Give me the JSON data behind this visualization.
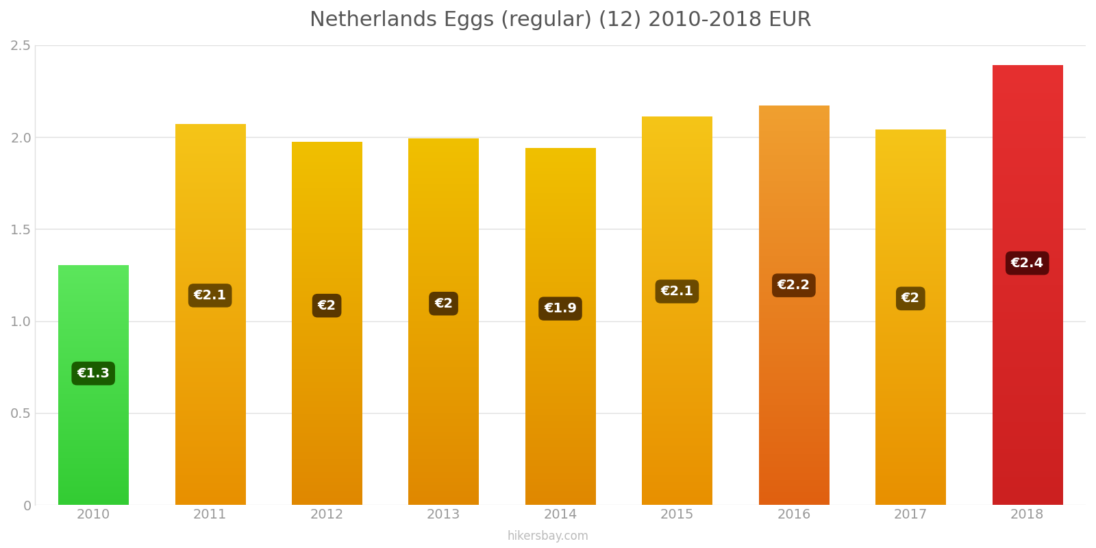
{
  "title": "Netherlands Eggs (regular) (12) 2010-2018 EUR",
  "years": [
    2010,
    2011,
    2012,
    2013,
    2014,
    2015,
    2016,
    2017,
    2018
  ],
  "values": [
    1.3,
    2.07,
    1.97,
    1.99,
    1.94,
    2.11,
    2.17,
    2.04,
    2.39
  ],
  "labels": [
    "€1.3",
    "€2.1",
    "€2",
    "€2",
    "€1.9",
    "€2.1",
    "€2.2",
    "€2",
    "€2.4"
  ],
  "bar_top_colors": [
    "#5ce65c",
    "#f5c518",
    "#f0c000",
    "#f0c000",
    "#f0c000",
    "#f5c518",
    "#f0a030",
    "#f5c518",
    "#e63030"
  ],
  "bar_bottom_colors": [
    "#33cc33",
    "#e89000",
    "#e08800",
    "#e08800",
    "#e08800",
    "#e89000",
    "#e06010",
    "#e89000",
    "#cc2020"
  ],
  "label_box_colors": [
    "#1a5c00",
    "#6b4a00",
    "#5a3800",
    "#5a3800",
    "#5a3800",
    "#6b4a00",
    "#6b3000",
    "#6b4a00",
    "#5a0808"
  ],
  "ylim": [
    0,
    2.5
  ],
  "yticks": [
    0,
    0.5,
    1.0,
    1.5,
    2.0,
    2.5
  ],
  "background_color": "#ffffff",
  "title_color": "#555555",
  "title_fontsize": 22,
  "tick_color": "#999999",
  "grid_color": "#e0e0e0",
  "watermark": "hikersbay.com"
}
